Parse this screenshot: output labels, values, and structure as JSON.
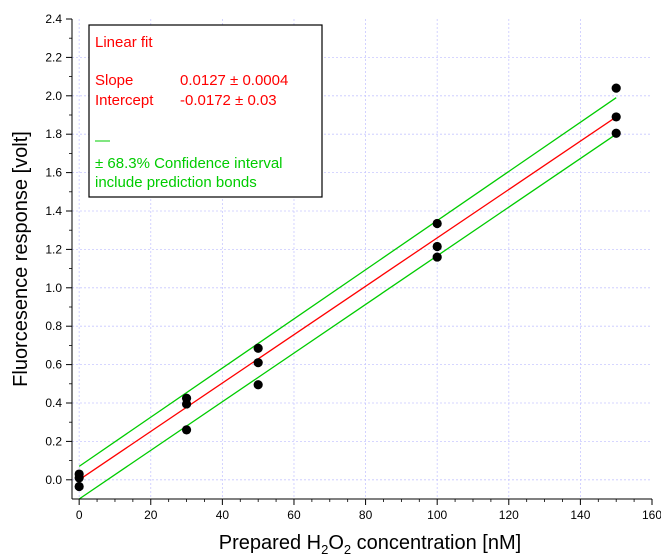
{
  "chart_data": {
    "type": "scatter",
    "xlabel_parts": [
      "Prepared H",
      "2",
      "O",
      "2",
      " concentration [nM]"
    ],
    "ylabel": "Fluorcesence response [volt]",
    "xlim": [
      -2,
      160
    ],
    "ylim": [
      -0.1,
      2.4
    ],
    "x_ticks": [
      0,
      20,
      40,
      60,
      80,
      100,
      120,
      140,
      160
    ],
    "y_ticks": [
      0.0,
      0.2,
      0.4,
      0.6,
      0.8,
      1.0,
      1.2,
      1.4,
      1.6,
      1.8,
      2.0,
      2.2,
      2.4
    ],
    "grid": true,
    "points": [
      {
        "x": 0,
        "y": 0.03
      },
      {
        "x": 0,
        "y": 0.01
      },
      {
        "x": 0,
        "y": -0.035
      },
      {
        "x": 30,
        "y": 0.425
      },
      {
        "x": 30,
        "y": 0.395
      },
      {
        "x": 30,
        "y": 0.26
      },
      {
        "x": 50,
        "y": 0.685
      },
      {
        "x": 50,
        "y": 0.61
      },
      {
        "x": 50,
        "y": 0.495
      },
      {
        "x": 100,
        "y": 1.335
      },
      {
        "x": 100,
        "y": 1.215
      },
      {
        "x": 100,
        "y": 1.16
      },
      {
        "x": 150,
        "y": 2.04
      },
      {
        "x": 150,
        "y": 1.89
      },
      {
        "x": 150,
        "y": 1.805
      }
    ],
    "fit_line": {
      "x": [
        0,
        150
      ],
      "y": [
        0.0,
        1.89
      ],
      "color": "#ff0000"
    },
    "upper_band": {
      "x": [
        0,
        150
      ],
      "y": [
        0.07,
        1.99
      ],
      "color": "#00cc00"
    },
    "lower_band": {
      "x": [
        0,
        150
      ],
      "y": [
        -0.1,
        1.8
      ],
      "color": "#00cc00"
    },
    "legend": {
      "placement": "top-left",
      "title": "Linear fit",
      "slope_label": "Slope",
      "slope_value": "0.0127 ± 0.0004",
      "intercept_label": "Intercept",
      "intercept_value": "-0.0172 ± 0.03",
      "dash": "—",
      "ci_line1": "± 68.3% Confidence interval",
      "ci_line2": "include prediction bonds",
      "fit_color": "#ff0000",
      "band_color": "#00cc00"
    },
    "point_color": "#000000",
    "grid_color": "#c8c8ff"
  }
}
